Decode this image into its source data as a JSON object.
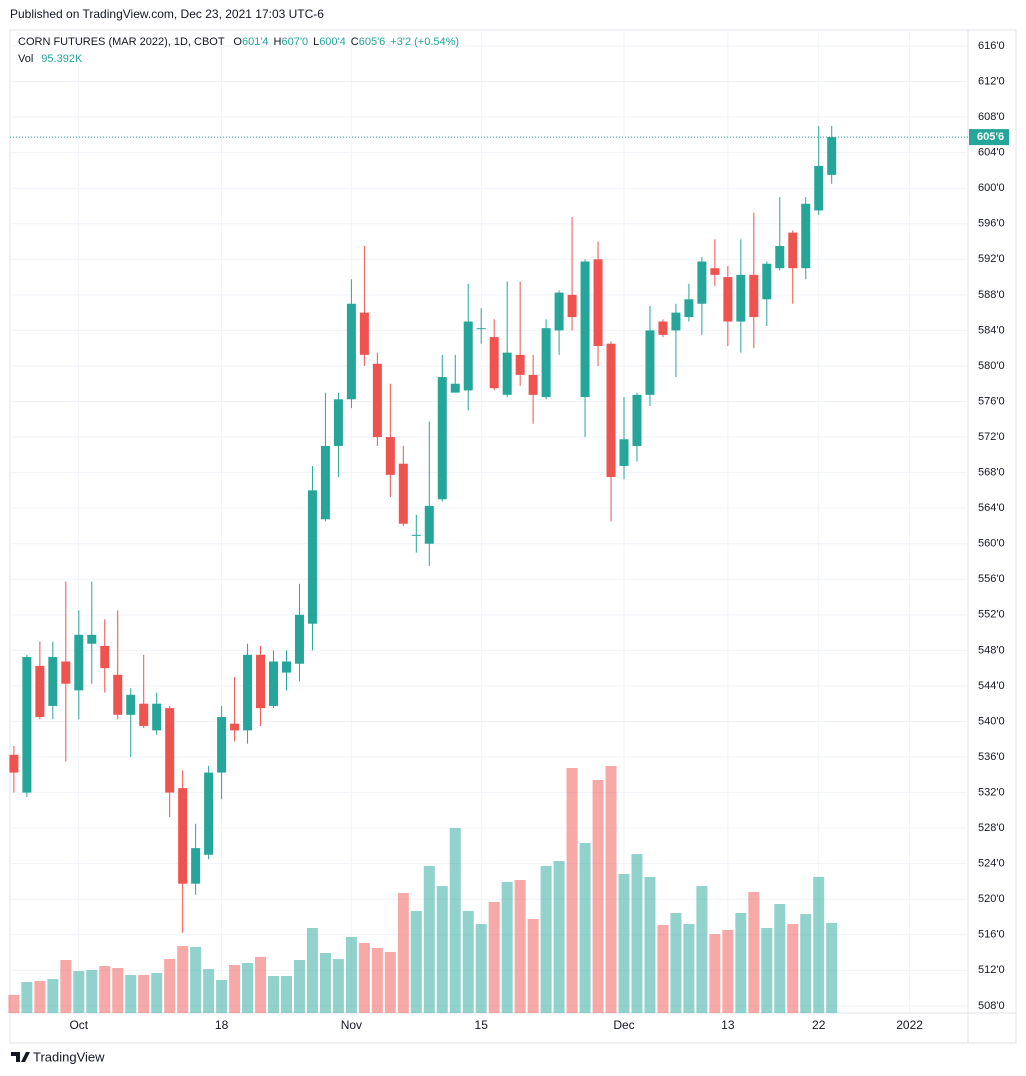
{
  "published": "Published on TradingView.com, Dec 23, 2021 17:03 UTC-6",
  "footer": "TradingView",
  "chart_data": {
    "type": "candlestick",
    "title": "CORN FUTURES (MAR 2022), 1D, CBOT",
    "ohlc_labels": [
      {
        "key": "O",
        "value": "601'4"
      },
      {
        "key": "H",
        "value": "607'0"
      },
      {
        "key": "L",
        "value": "600'4"
      },
      {
        "key": "C",
        "value": "605'6"
      }
    ],
    "change": "+3'2 (+0.54%)",
    "volume_name": "Vol",
    "volume_label": "95.392K",
    "last_price_label": "605'6",
    "up_color": "#26a69a",
    "down_color": "#ef5350",
    "open": [
      536.25,
      532,
      546.25,
      541.75,
      546.75,
      543.5,
      548.75,
      548.5,
      545.25,
      540.75,
      542,
      539,
      541.5,
      532.5,
      521.75,
      525,
      534.25,
      539.75,
      539,
      547.5,
      541.75,
      545.5,
      546.5,
      551,
      562.75,
      571,
      576.25,
      586,
      580.25,
      572,
      569,
      561,
      560,
      565,
      577,
      577.25,
      584.25,
      583.25,
      576.75,
      581.25,
      579,
      576.5,
      584,
      588,
      576.5,
      592,
      582.5,
      568.75,
      571,
      576.75,
      585,
      584,
      585.5,
      587,
      591,
      590,
      585,
      590.25,
      587.5,
      591,
      595,
      591,
      597.5,
      601.5
    ],
    "high": [
      537.25,
      547.5,
      549,
      549,
      555.75,
      552.5,
      555.75,
      551.5,
      552.5,
      543.75,
      547.5,
      543.25,
      541.75,
      534.5,
      528.5,
      535,
      541.75,
      545,
      548.75,
      548.5,
      548,
      548,
      555.5,
      568.75,
      577,
      577,
      589.75,
      593.5,
      581.5,
      578,
      571,
      563.25,
      573.75,
      581.25,
      581.25,
      589.25,
      586.5,
      585.25,
      589.5,
      589.5,
      581.25,
      585.25,
      588.5,
      596.75,
      592,
      594,
      582.75,
      576.5,
      577,
      586.75,
      585.25,
      587,
      589.25,
      592.25,
      594.25,
      591.25,
      594.25,
      597.25,
      591.75,
      599,
      595.25,
      599,
      607,
      607
    ],
    "low": [
      532,
      531.5,
      540.25,
      540.25,
      535.5,
      540.25,
      544.25,
      543.25,
      540.25,
      536,
      539.25,
      538.5,
      529.25,
      516.25,
      520.5,
      524.5,
      531.25,
      537.75,
      537.5,
      539.5,
      541.5,
      543.5,
      544.5,
      548,
      562.5,
      567.5,
      575.25,
      580,
      571,
      565.25,
      562,
      559,
      557.5,
      564.75,
      577,
      575,
      582.5,
      577.25,
      576.5,
      577.75,
      573.5,
      576.25,
      581.25,
      584,
      572,
      580,
      562.5,
      567.25,
      569.25,
      575.5,
      583.25,
      578.75,
      585,
      583.5,
      589,
      582.25,
      581.5,
      582,
      584.5,
      590.75,
      587,
      589.75,
      597,
      600.5
    ],
    "close": [
      534.25,
      547.25,
      540.5,
      547.25,
      544.25,
      549.75,
      549.75,
      546,
      540.75,
      543,
      539.5,
      542,
      532,
      521.75,
      525.75,
      534.25,
      540.5,
      539,
      547.5,
      541.5,
      546.75,
      546.75,
      552,
      566,
      571,
      576.25,
      587,
      581.25,
      572,
      567.75,
      562.25,
      561,
      564.25,
      578.75,
      578,
      585,
      584.25,
      577.5,
      581.5,
      579,
      576.75,
      584.25,
      588.25,
      585.5,
      591.75,
      582.25,
      567.5,
      571.75,
      576.75,
      584,
      583.5,
      586,
      587.5,
      591.75,
      590.25,
      585,
      590.25,
      585.5,
      591.5,
      593.5,
      591,
      598.25,
      602.5,
      605.75
    ],
    "volume": [
      19.1,
      32.9,
      33.9,
      36.0,
      56.2,
      44.5,
      45.6,
      49.8,
      47.7,
      40.3,
      40.3,
      42.4,
      57.2,
      71.0,
      70.0,
      46.6,
      35.0,
      50.9,
      53.0,
      59.4,
      39.2,
      39.2,
      56.2,
      90.1,
      63.6,
      57.2,
      80.6,
      74.2,
      68.9,
      64.7,
      127.2,
      108.1,
      155.8,
      134.6,
      196.1,
      108.1,
      94.3,
      117.7,
      138.9,
      141.0,
      99.6,
      155.8,
      161.1,
      259.7,
      180.2,
      247.0,
      261.8,
      147.3,
      168.5,
      144.2,
      93.3,
      106.0,
      94.3,
      134.6,
      83.7,
      88.0,
      106.0,
      128.3,
      90.1,
      115.5,
      94.3,
      104.9,
      144.2,
      95.392
    ],
    "xlim": [
      -0.3,
      73.5
    ],
    "xticks": [
      {
        "value": 5,
        "label": "Oct"
      },
      {
        "value": 16,
        "label": "18"
      },
      {
        "value": 26,
        "label": "Nov"
      },
      {
        "value": 36,
        "label": "15"
      },
      {
        "value": 47,
        "label": "Dec"
      },
      {
        "value": 55,
        "label": "13"
      },
      {
        "value": 62,
        "label": "22"
      },
      {
        "value": 69,
        "label": "2022"
      }
    ],
    "ylim": [
      507.2,
      617.8
    ],
    "yticks": [
      {
        "value": 508,
        "label": "508'0"
      },
      {
        "value": 512,
        "label": "512'0"
      },
      {
        "value": 516,
        "label": "516'0"
      },
      {
        "value": 520,
        "label": "520'0"
      },
      {
        "value": 524,
        "label": "524'0"
      },
      {
        "value": 528,
        "label": "528'0"
      },
      {
        "value": 532,
        "label": "532'0"
      },
      {
        "value": 536,
        "label": "536'0"
      },
      {
        "value": 540,
        "label": "540'0"
      },
      {
        "value": 544,
        "label": "544'0"
      },
      {
        "value": 548,
        "label": "548'0"
      },
      {
        "value": 552,
        "label": "552'0"
      },
      {
        "value": 556,
        "label": "556'0"
      },
      {
        "value": 560,
        "label": "560'0"
      },
      {
        "value": 564,
        "label": "564'0"
      },
      {
        "value": 568,
        "label": "568'0"
      },
      {
        "value": 572,
        "label": "572'0"
      },
      {
        "value": 576,
        "label": "576'0"
      },
      {
        "value": 580,
        "label": "580'0"
      },
      {
        "value": 584,
        "label": "584'0"
      },
      {
        "value": 588,
        "label": "588'0"
      },
      {
        "value": 592,
        "label": "592'0"
      },
      {
        "value": 596,
        "label": "596'0"
      },
      {
        "value": 600,
        "label": "600'0"
      },
      {
        "value": 604,
        "label": "604'0"
      },
      {
        "value": 608,
        "label": "608'0"
      },
      {
        "value": 612,
        "label": "612'0"
      },
      {
        "value": 616,
        "label": "616'0"
      }
    ],
    "grid": true
  }
}
